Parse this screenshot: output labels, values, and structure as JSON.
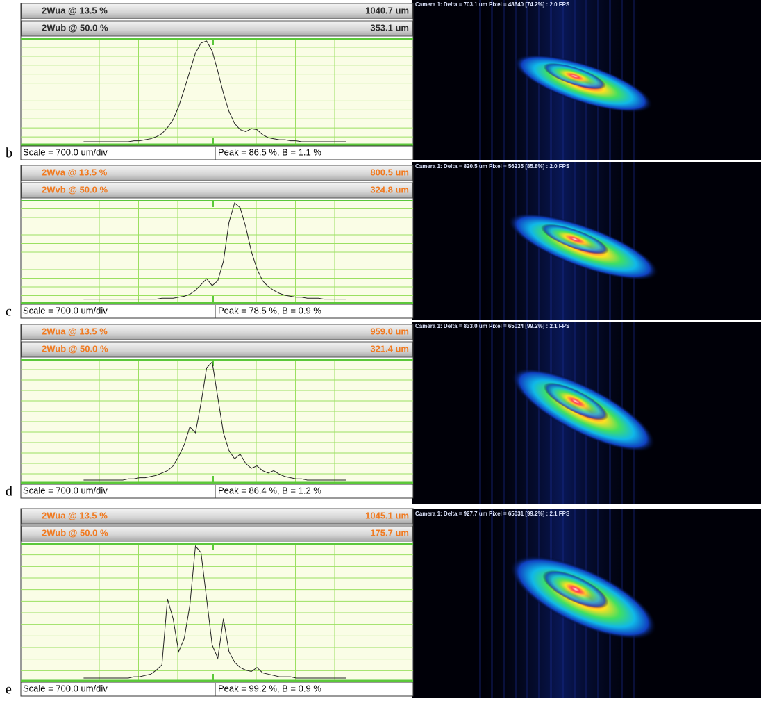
{
  "panels": [
    {
      "label": "b",
      "text_color": "#2a2a2a",
      "headers": [
        {
          "name": "2Wua @ 13.5 %",
          "value": "1040.7 um"
        },
        {
          "name": "2Wub @ 50.0 %",
          "value": "353.1 um"
        }
      ],
      "scale": "Scale = 700.0 um/div",
      "peak": "Peak = 86.5 %,  B = 1.1 %",
      "camera": "Camera 1: Delta = 703.1 um Pixel = 48640 [74.2%] : 2.0 FPS",
      "profile": [
        0,
        0,
        0,
        0,
        0,
        0,
        0,
        0,
        0,
        1,
        1,
        2,
        3,
        5,
        8,
        14,
        22,
        35,
        52,
        70,
        88,
        98,
        100,
        90,
        70,
        48,
        30,
        18,
        12,
        10,
        13,
        12,
        7,
        4,
        3,
        2,
        2,
        1,
        1,
        0,
        0,
        0,
        0,
        0,
        0,
        0,
        0,
        0
      ]
    },
    {
      "label": "c",
      "text_color": "#f07a20",
      "headers": [
        {
          "name": "2Wva @ 13.5 %",
          "value": "800.5 um"
        },
        {
          "name": "2Wvb @ 50.0 %",
          "value": "324.8 um"
        }
      ],
      "scale": "Scale = 700.0 um/div",
      "peak": "Peak = 78.5 %,  B = 0.9 %",
      "camera": "Camera 1: Delta = 820.5 um Pixel = 56235 [85.8%] : 2.0 FPS",
      "profile": [
        1,
        1,
        1,
        1,
        1,
        1,
        1,
        1,
        1,
        1,
        1,
        1,
        1,
        1,
        2,
        2,
        2,
        3,
        4,
        6,
        10,
        16,
        22,
        15,
        20,
        40,
        80,
        100,
        95,
        75,
        50,
        32,
        20,
        14,
        10,
        7,
        5,
        4,
        3,
        3,
        2,
        2,
        2,
        1,
        1,
        1,
        1,
        1
      ]
    },
    {
      "label": "d",
      "text_color": "#f07a20",
      "headers": [
        {
          "name": "2Wua @ 13.5 %",
          "value": "959.0 um"
        },
        {
          "name": "2Wub @ 50.0 %",
          "value": "321.4 um"
        }
      ],
      "scale": "Scale = 700.0 um/div",
      "peak": "Peak = 86.4 %,  B = 1.2 %",
      "camera": "Camera 1: Delta = 833.0 um Pixel = 65024 [99.2%] : 2.1 FPS",
      "profile": [
        0,
        0,
        0,
        0,
        0,
        0,
        0,
        0,
        1,
        1,
        2,
        2,
        3,
        4,
        6,
        8,
        12,
        20,
        30,
        45,
        40,
        65,
        95,
        100,
        70,
        40,
        25,
        18,
        22,
        14,
        10,
        12,
        8,
        6,
        8,
        5,
        3,
        2,
        1,
        1,
        0,
        0,
        0,
        0,
        0,
        0,
        0,
        0
      ]
    },
    {
      "label": "e",
      "text_color": "#f07a20",
      "headers": [
        {
          "name": "2Wua @ 13.5 %",
          "value": "1045.1 um"
        },
        {
          "name": "2Wub @ 50.0 %",
          "value": "175.7 um"
        }
      ],
      "scale": "Scale = 700.0 um/div",
      "peak": "Peak = 99.2 %,  B = 0.9 %",
      "camera": "Camera 1: Delta = 927.7 um Pixel = 65031 [99.2%] : 2.1 FPS",
      "profile": [
        0,
        0,
        0,
        0,
        0,
        0,
        0,
        0,
        0,
        1,
        1,
        2,
        3,
        6,
        10,
        60,
        45,
        20,
        30,
        55,
        100,
        95,
        60,
        25,
        15,
        45,
        20,
        12,
        8,
        6,
        5,
        8,
        4,
        3,
        2,
        1,
        1,
        1,
        0,
        0,
        0,
        0,
        0,
        0,
        0,
        0,
        0,
        0
      ]
    }
  ]
}
